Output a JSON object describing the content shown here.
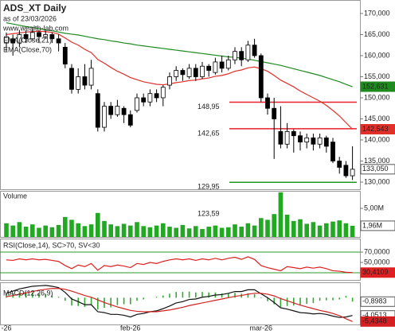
{
  "chart_data": [
    {
      "type": "candlestick",
      "title": "ADS_XT Daily",
      "subtitle": "as of 23/03/2026",
      "watermark": "www.wealth-lab.com",
      "categories": [
        "-26",
        null,
        null,
        null,
        null,
        null,
        null,
        null,
        null,
        null,
        null,
        null,
        null,
        null,
        null,
        null,
        null,
        null,
        null,
        "feb-26",
        null,
        null,
        null,
        null,
        null,
        null,
        null,
        null,
        null,
        null,
        null,
        null,
        null,
        null,
        null,
        null,
        null,
        null,
        null,
        "mar-26",
        null,
        null,
        null,
        null,
        null,
        null,
        null,
        null,
        null,
        null,
        null,
        null,
        null,
        null
      ],
      "open": [
        163,
        164,
        163,
        165,
        164,
        165.5,
        164.5,
        165,
        164,
        162,
        157,
        152,
        155,
        153,
        151,
        143,
        148,
        146,
        147.5,
        146,
        147,
        150,
        149,
        151,
        150,
        153,
        155,
        156.5,
        155,
        157,
        155,
        157.5,
        156,
        158.5,
        157,
        159,
        161,
        159,
        162.5,
        160,
        150,
        147.5,
        142,
        139,
        142,
        141,
        139.5,
        140.5,
        139,
        140.5,
        139.5,
        135,
        134,
        131.5
      ],
      "high": [
        165.5,
        165,
        166,
        166,
        166.5,
        166,
        166,
        165.5,
        165,
        163,
        158,
        157,
        158,
        159,
        152,
        149,
        149,
        149.5,
        148,
        147,
        151,
        151,
        152,
        152,
        153,
        156,
        157.5,
        157,
        158,
        158,
        158.5,
        158,
        159.5,
        160,
        160,
        162,
        162,
        163.5,
        164,
        160.5,
        151,
        150,
        148,
        144,
        142.5,
        142,
        141.5,
        141.5,
        141.5,
        141,
        140.5,
        136,
        135,
        138.5
      ],
      "low": [
        161,
        160,
        162,
        163,
        163.5,
        163,
        164,
        163,
        161,
        157,
        151,
        151,
        152,
        152,
        142,
        142,
        145,
        145.5,
        144,
        143,
        146.5,
        148,
        148,
        149,
        148,
        152,
        154,
        154,
        154.5,
        154,
        154.5,
        155,
        155.5,
        156,
        156.5,
        158,
        157.5,
        158.5,
        159.5,
        149,
        146,
        135.5,
        138,
        138,
        137,
        137.5,
        138,
        137.5,
        138,
        137,
        134.5,
        132,
        131,
        130.5
      ],
      "close": [
        164.5,
        163,
        165,
        164,
        165.5,
        164.5,
        165,
        164,
        163,
        158,
        152,
        155,
        153,
        157,
        143,
        148,
        146,
        148,
        146,
        143.5,
        150,
        149,
        151,
        150,
        152.5,
        155,
        156.5,
        155.5,
        157,
        155,
        157.5,
        156.5,
        158.5,
        157,
        159,
        161,
        159,
        162.5,
        160,
        150,
        147.5,
        145,
        139,
        142,
        141,
        139.5,
        140.5,
        139,
        140.5,
        138.5,
        135,
        133.5,
        131.5,
        133.05
      ],
      "close_label": "133,050",
      "series": [
        {
          "name": "EMA(Close,21)",
          "color": "#e0302a",
          "last_label": "142,543",
          "values": [
            165,
            165.2,
            165.4,
            165.6,
            165.7,
            165.8,
            165.7,
            165.5,
            165.1,
            164.2,
            163.2,
            162.5,
            161.5,
            160.7,
            159.1,
            158.2,
            157.2,
            156.3,
            155.6,
            154.8,
            154.3,
            153.8,
            153.5,
            153.2,
            153.1,
            153.3,
            153.6,
            153.8,
            154.1,
            154.2,
            154.5,
            154.7,
            155.1,
            155.3,
            155.7,
            156.3,
            156.6,
            157.1,
            157.3,
            156.9,
            156.3,
            155.3,
            154.2,
            153.4,
            152.6,
            151.6,
            150.8,
            150,
            149.2,
            148.2,
            147,
            145.7,
            144.1,
            142.543
          ]
        },
        {
          "name": "EMA(Close,70)",
          "color": "#1f8a1f",
          "last_label": "152,631",
          "values": [
            167.8,
            167.5,
            167.2,
            166.9,
            166.7,
            166.4,
            166.1,
            165.9,
            165.6,
            165.3,
            165.1,
            164.9,
            164.6,
            164.3,
            164,
            163.8,
            163.5,
            163.3,
            163,
            162.8,
            162.5,
            162.3,
            162.1,
            161.9,
            161.7,
            161.5,
            161.3,
            161.1,
            160.9,
            160.7,
            160.5,
            160.3,
            160.1,
            159.9,
            159.7,
            159.6,
            159.4,
            159.2,
            158.9,
            158.6,
            158.3,
            158,
            157.7,
            157.3,
            156.9,
            156.5,
            156.1,
            155.7,
            155.3,
            154.8,
            154.3,
            153.8,
            153.2,
            152.631
          ]
        }
      ],
      "levels": [
        {
          "value": 148.95,
          "label": "148,95",
          "color": "#e8202a"
        },
        {
          "value": 142.65,
          "label": "142,65",
          "color": "#e8202a"
        },
        {
          "value": 129.95,
          "label": "129,95",
          "color": "#1f9a1f"
        },
        {
          "value": 123.59,
          "label": "123,59",
          "color": "#1f9a1f"
        }
      ],
      "ylim": [
        128.3,
        173.2
      ],
      "yticks": [
        {
          "value": 170,
          "label": "170,000"
        },
        {
          "value": 165,
          "label": "165,000"
        },
        {
          "value": 160,
          "label": "160,000"
        },
        {
          "value": 155,
          "label": "155,000"
        },
        {
          "value": 150,
          "label": "150,000"
        },
        {
          "value": 145,
          "label": "145,000"
        },
        {
          "value": 140,
          "label": "140,000"
        },
        {
          "value": 135,
          "label": "135,000"
        },
        {
          "value": 130,
          "label": "130,000"
        }
      ]
    },
    {
      "type": "bar",
      "title": "Volume",
      "color": "#22a822",
      "last_label": "1,96M",
      "values": [
        2.4,
        2.0,
        2.6,
        1.8,
        2.2,
        1.6,
        2.0,
        1.7,
        2.1,
        3.5,
        3.0,
        2.4,
        1.9,
        2.2,
        4.2,
        2.8,
        2.2,
        1.9,
        2.3,
        2.0,
        2.6,
        1.9,
        1.7,
        2.0,
        2.4,
        1.8,
        1.6,
        2.1,
        1.5,
        1.9,
        1.4,
        1.8,
        2.0,
        1.6,
        1.7,
        2.2,
        1.8,
        2.4,
        2.0,
        3.3,
        3.0,
        4.0,
        7.8,
        3.9,
        2.8,
        3.1,
        2.3,
        2.6,
        2.0,
        2.4,
        2.7,
        2.9,
        2.4,
        1.96
      ],
      "ylim": [
        0,
        8.06
      ],
      "yticks": [
        {
          "value": 5,
          "label": "5,00M"
        }
      ]
    },
    {
      "type": "line",
      "title": "RSI(Close,14), SC>70, SV<30",
      "color": "#e02020",
      "last_label": "30,4109",
      "values": [
        55,
        54,
        57,
        55,
        57,
        55,
        56,
        54,
        52,
        44,
        38,
        45,
        42,
        48,
        35,
        44,
        42,
        45,
        43,
        40,
        48,
        46,
        50,
        48,
        52,
        55,
        57,
        55,
        57,
        54,
        57,
        55,
        58,
        55,
        58,
        60,
        56,
        61,
        56,
        44,
        40,
        37,
        34,
        42,
        40,
        38,
        41,
        39,
        41,
        38,
        34,
        33,
        31,
        30.4109
      ],
      "levels": [
        70,
        30
      ],
      "level_color": "#2a9a2a",
      "ylim": [
        16.2,
        96.2
      ],
      "yticks": [
        {
          "value": 70,
          "label": "70,0000"
        },
        {
          "value": 50,
          "label": "50,0000"
        }
      ]
    },
    {
      "type": "macd",
      "title": "MACD(12,26,9)",
      "histogram": {
        "color": "#33aa33",
        "last_label": "-0,8983",
        "values": [
          0.8,
          1.0,
          1.2,
          1.2,
          1.2,
          1.0,
          0.9,
          0.5,
          0.2,
          -0.7,
          -1.8,
          -1.9,
          -2.1,
          -1.7,
          -2.7,
          -2.3,
          -2.2,
          -1.7,
          -1.5,
          -1.5,
          -0.7,
          -0.4,
          0,
          0.2,
          0.5,
          0.9,
          1.3,
          1.3,
          1.4,
          1.2,
          1.3,
          1.2,
          1.2,
          1.0,
          1.0,
          1.1,
          0.9,
          1.0,
          0.8,
          -0.1,
          -0.8,
          -1.5,
          -2.1,
          -1.9,
          -1.8,
          -1.7,
          -1.4,
          -1.2,
          -0.7,
          -0.6,
          -0.6,
          -0.4,
          0.4,
          -0.8983
        ]
      },
      "series": [
        {
          "color": "#111111",
          "last_label": "-4,0513",
          "values": [
            1.0,
            1.5,
            2.0,
            2.3,
            2.6,
            2.7,
            2.8,
            2.6,
            2.3,
            1.2,
            -0.3,
            -0.9,
            -1.6,
            -1.6,
            -3.2,
            -3.4,
            -3.8,
            -3.8,
            -4.0,
            -4.4,
            -3.8,
            -3.6,
            -3.2,
            -3.0,
            -2.5,
            -1.9,
            -1.2,
            -0.9,
            -0.4,
            -0.3,
            0.1,
            0.3,
            0.6,
            0.7,
            1.0,
            1.4,
            1.4,
            1.8,
            1.8,
            0.9,
            0.0,
            -1.1,
            -2.3,
            -2.6,
            -3.0,
            -3.4,
            -3.5,
            -3.7,
            -3.6,
            -3.8,
            -4.2,
            -4.5,
            -4.4,
            -4.0513
          ]
        },
        {
          "color": "#d42020",
          "last_label": "-5,4348",
          "values": [
            0.2,
            0.5,
            0.8,
            1.1,
            1.4,
            1.7,
            1.9,
            2.1,
            2.1,
            1.9,
            1.5,
            1.0,
            0.5,
            0.1,
            -0.5,
            -1.1,
            -1.6,
            -2.1,
            -2.5,
            -2.9,
            -3.1,
            -3.2,
            -3.2,
            -3.2,
            -3.0,
            -2.8,
            -2.5,
            -2.2,
            -1.8,
            -1.5,
            -1.2,
            -0.9,
            -0.6,
            -0.3,
            0.0,
            0.3,
            0.5,
            0.8,
            1.0,
            1.0,
            0.8,
            0.4,
            -0.2,
            -0.7,
            -1.2,
            -1.7,
            -2.1,
            -2.5,
            -2.9,
            -3.2,
            -3.6,
            -4.1,
            -4.8,
            -5.4348
          ]
        }
      ],
      "ylim": [
        -6.1,
        3.5
      ]
    }
  ]
}
